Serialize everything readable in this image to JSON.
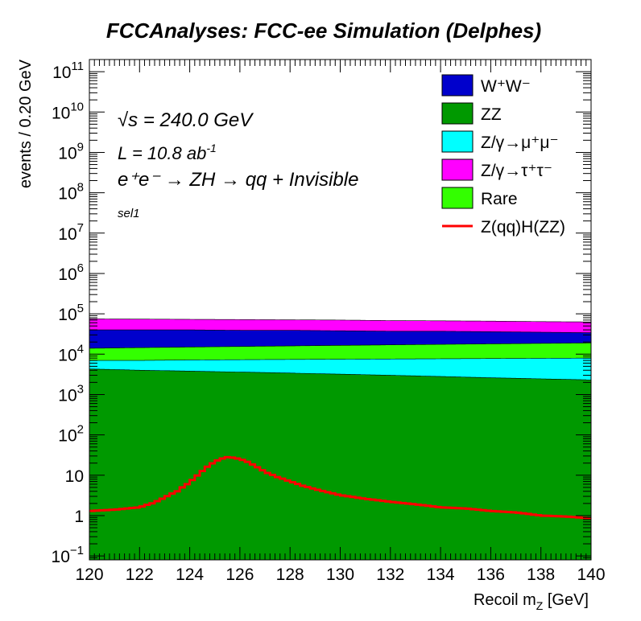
{
  "chart_data": {
    "type": "area",
    "stacked": true,
    "title": "FCCAnalyses: FCC-ee Simulation (Delphes)",
    "xlabel": "Recoil m_Z [GeV]",
    "ylabel": "events / 0.20 GeV",
    "xlim": [
      120,
      140
    ],
    "ylim": [
      0.08,
      200000000000
    ],
    "yscale": "log",
    "grid": false,
    "legend_position": "top-right",
    "x_ticks": [
      "120",
      "122",
      "124",
      "126",
      "128",
      "130",
      "132",
      "134",
      "136",
      "138",
      "140"
    ],
    "y_ticks": [
      {
        "value": 0.1,
        "base": "10",
        "exp": "−1"
      },
      {
        "value": 1,
        "label": "1"
      },
      {
        "value": 10,
        "label": "10"
      },
      {
        "value": 100,
        "base": "10",
        "exp": "2"
      },
      {
        "value": 1000,
        "base": "10",
        "exp": "3"
      },
      {
        "value": 10000,
        "base": "10",
        "exp": "4"
      },
      {
        "value": 100000,
        "base": "10",
        "exp": "5"
      },
      {
        "value": 1000000,
        "base": "10",
        "exp": "6"
      },
      {
        "value": 10000000,
        "base": "10",
        "exp": "7"
      },
      {
        "value": 100000000,
        "base": "10",
        "exp": "8"
      },
      {
        "value": 1000000000,
        "base": "10",
        "exp": "9"
      },
      {
        "value": 10000000000,
        "base": "10",
        "exp": "10"
      },
      {
        "value": 100000000000,
        "base": "10",
        "exp": "11"
      }
    ],
    "annotations": {
      "sqrt_s": "√s = 240.0 GeV",
      "lumi_main": "L = 10.8 ab",
      "lumi_exp": "-1",
      "process": "e⁺e⁻ → ZH → qq + Invisible",
      "selection": "sel1"
    },
    "x_anchors": [
      120,
      122,
      124,
      126,
      128,
      130,
      132,
      134,
      136,
      138,
      140
    ],
    "stack_order": [
      "ZZ",
      "Z/γ→μ⁺μ⁻",
      "Rare",
      "W⁺W⁻",
      "Z/γ→τ⁺τ⁻"
    ],
    "series": [
      {
        "name": "W⁺W⁻",
        "kind": "stack",
        "color": "#0000cc",
        "cumulative": [
          40000,
          40000,
          40000,
          39000,
          39000,
          38000,
          37000,
          37000,
          36000,
          35000,
          34000
        ]
      },
      {
        "name": "ZZ",
        "kind": "stack",
        "color": "#009900",
        "cumulative": [
          4300,
          4000,
          3800,
          3600,
          3400,
          3200,
          3000,
          2800,
          2600,
          2450,
          2300
        ]
      },
      {
        "name": "Z/γ→μ⁺μ⁻",
        "kind": "stack",
        "color": "#00ffff",
        "cumulative": [
          7000,
          7000,
          7200,
          7300,
          7400,
          7500,
          7600,
          7700,
          7800,
          7900,
          8000
        ]
      },
      {
        "name": "Z/γ→τ⁺τ⁻",
        "kind": "stack",
        "color": "#ff00ff",
        "cumulative": [
          75000,
          74000,
          73000,
          72000,
          71000,
          70000,
          68000,
          67000,
          66000,
          64000,
          63000
        ]
      },
      {
        "name": "Rare",
        "kind": "stack",
        "color": "#33ff00",
        "cumulative": [
          14000,
          14500,
          15000,
          15500,
          16000,
          16500,
          17000,
          17500,
          18000,
          18500,
          19000
        ]
      },
      {
        "name": "Z(qq)H(ZZ)",
        "kind": "line",
        "color": "#ff0000",
        "x": [
          120,
          121,
          122,
          122.6,
          123,
          123.5,
          124,
          124.4,
          124.8,
          125.2,
          125.5,
          125.8,
          126.2,
          126.6,
          127,
          127.5,
          128,
          128.5,
          129,
          129.5,
          130,
          131,
          132,
          133,
          134,
          135,
          136,
          137,
          138,
          139,
          140
        ],
        "y": [
          1.3,
          1.4,
          1.6,
          2.1,
          2.8,
          4.0,
          6.5,
          11,
          18,
          25,
          28,
          27,
          23,
          17,
          12,
          9,
          7,
          5.5,
          4.5,
          3.8,
          3.2,
          2.6,
          2.2,
          1.9,
          1.6,
          1.5,
          1.3,
          1.2,
          1.0,
          0.95,
          0.85
        ]
      }
    ],
    "legend": [
      {
        "label": "W⁺W⁻",
        "symbol": "box",
        "color": "#0000cc"
      },
      {
        "label": "ZZ",
        "symbol": "box",
        "color": "#009900"
      },
      {
        "label": "Z/γ→μ⁺μ⁻",
        "symbol": "box",
        "color": "#00ffff"
      },
      {
        "label": "Z/γ→τ⁺τ⁻",
        "symbol": "box",
        "color": "#ff00ff"
      },
      {
        "label": "Rare",
        "symbol": "box",
        "color": "#33ff00"
      },
      {
        "label": "Z(qq)H(ZZ)",
        "symbol": "line",
        "color": "#ff0000"
      }
    ]
  }
}
